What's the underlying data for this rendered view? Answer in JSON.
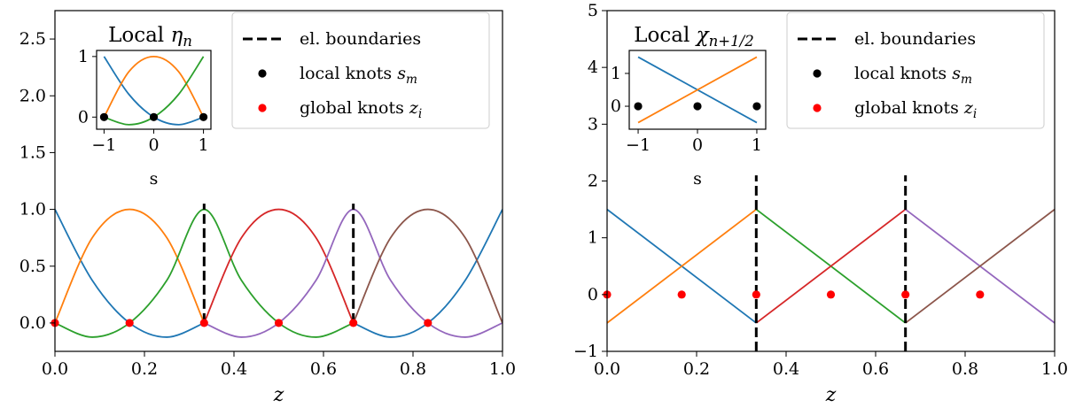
{
  "colors": {
    "series": [
      "#1f77b4",
      "#ff7f0e",
      "#2ca02c",
      "#d62728",
      "#9467bd",
      "#8c564b"
    ],
    "boundary": "#000000",
    "local_knot": "#000000",
    "global_knot": "#ff0000"
  },
  "chart_data": [
    {
      "type": "line",
      "xlabel": "z",
      "ylabel": "",
      "xlim": [
        0,
        1
      ],
      "ylim": [
        -0.25,
        2.75
      ],
      "xticks": [
        0.0,
        0.2,
        0.4,
        0.6,
        0.8,
        1.0
      ],
      "xtick_labels": [
        "0.0",
        "0.2",
        "0.4",
        "0.6",
        "0.8",
        "1.0"
      ],
      "yticks": [
        0.0,
        0.5,
        1.0,
        1.5,
        2.0,
        2.5
      ],
      "ytick_labels": [
        "0.0",
        "0.5",
        "1.0",
        "1.5",
        "2.0",
        "2.5"
      ],
      "element_boundaries": [
        0.3333,
        0.6667
      ],
      "boundary_range": [
        0,
        1.05
      ],
      "global_knots": [
        {
          "x": 0.0,
          "y": 0.0
        },
        {
          "x": 0.1667,
          "y": 0.0
        },
        {
          "x": 0.3333,
          "y": 0.0
        },
        {
          "x": 0.5,
          "y": 0.0
        },
        {
          "x": 0.6667,
          "y": 0.0
        },
        {
          "x": 0.8333,
          "y": 0.0
        }
      ],
      "series": [
        {
          "color_index": 0,
          "x": [
            0,
            0.0833,
            0.1667,
            0.25,
            0.3333,
            0.4167,
            0.5,
            0.5833,
            0.6667,
            0.75,
            0.8333,
            0.9167,
            1.0
          ],
          "y": [
            1.0,
            0.375,
            0.0,
            -0.125,
            0.0,
            null,
            null,
            null,
            0.0,
            -0.125,
            0.0,
            0.375,
            1.0
          ]
        },
        {
          "color_index": 1,
          "x": [
            0,
            0.0833,
            0.1667,
            0.25,
            0.3333
          ],
          "y": [
            0.0,
            0.75,
            1.0,
            0.75,
            0.0
          ]
        },
        {
          "color_index": 2,
          "x": [
            0,
            0.0833,
            0.1667,
            0.25,
            0.3333,
            0.4167,
            0.5,
            0.5833,
            0.6667
          ],
          "y": [
            0.0,
            -0.125,
            0.0,
            0.375,
            1.0,
            0.375,
            0.0,
            -0.125,
            0.0
          ]
        },
        {
          "color_index": 3,
          "x": [
            0.3333,
            0.4167,
            0.5,
            0.5833,
            0.6667
          ],
          "y": [
            0.0,
            0.75,
            1.0,
            0.75,
            0.0
          ]
        },
        {
          "color_index": 4,
          "x": [
            0.3333,
            0.4167,
            0.5,
            0.5833,
            0.6667,
            0.75,
            0.8333,
            0.9167,
            1.0
          ],
          "y": [
            0.0,
            -0.125,
            0.0,
            0.375,
            1.0,
            0.375,
            0.0,
            -0.125,
            0.0
          ]
        },
        {
          "color_index": 5,
          "x": [
            0.6667,
            0.75,
            0.8333,
            0.9167,
            1.0
          ],
          "y": [
            0.0,
            0.75,
            1.0,
            0.75,
            0.0
          ]
        }
      ],
      "legend": {
        "placement": "upper-right",
        "entries": [
          {
            "kind": "dash",
            "label": "el. boundaries"
          },
          {
            "kind": "black-dot",
            "label": "local knots ",
            "math": "s",
            "sub": "m"
          },
          {
            "kind": "red-dot",
            "label": "global knots ",
            "math": "z",
            "sub": "i"
          }
        ]
      },
      "inset": {
        "title": "Local ",
        "title_math": "η",
        "title_sub": "n",
        "xlabel": "s",
        "xlim": [
          -1.15,
          1.15
        ],
        "ylim": [
          -0.2,
          1.1
        ],
        "xticks": [
          -1,
          0,
          1
        ],
        "xtick_labels": [
          "−1",
          "0",
          "1"
        ],
        "yticks": [
          0,
          1
        ],
        "ytick_labels": [
          "0",
          "1"
        ],
        "local_knots": [
          {
            "x": -1,
            "y": 0
          },
          {
            "x": 0,
            "y": 0
          },
          {
            "x": 1,
            "y": 0
          }
        ],
        "series": [
          {
            "color_index": 0,
            "x": [
              -1,
              -0.5,
              0,
              0.5,
              1
            ],
            "y": [
              1.0,
              0.375,
              0.0,
              -0.125,
              0.0
            ]
          },
          {
            "color_index": 1,
            "x": [
              -1,
              -0.5,
              0,
              0.5,
              1
            ],
            "y": [
              0.0,
              0.75,
              1.0,
              0.75,
              0.0
            ]
          },
          {
            "color_index": 2,
            "x": [
              -1,
              -0.5,
              0,
              0.5,
              1
            ],
            "y": [
              0.0,
              -0.125,
              0.0,
              0.375,
              1.0
            ]
          }
        ]
      }
    },
    {
      "type": "line",
      "xlabel": "z",
      "ylabel": "",
      "xlim": [
        0,
        1
      ],
      "ylim": [
        -1,
        5
      ],
      "xticks": [
        0.0,
        0.2,
        0.4,
        0.6,
        0.8,
        1.0
      ],
      "xtick_labels": [
        "0.0",
        "0.2",
        "0.4",
        "0.6",
        "0.8",
        "1.0"
      ],
      "yticks": [
        -1,
        0,
        1,
        2,
        3,
        4,
        5
      ],
      "ytick_labels": [
        "−1",
        "0",
        "1",
        "2",
        "3",
        "4",
        "5"
      ],
      "element_boundaries": [
        0.3333,
        0.6667
      ],
      "boundary_range": [
        -1,
        2.1
      ],
      "global_knots": [
        {
          "x": 0.0,
          "y": 0.0
        },
        {
          "x": 0.1667,
          "y": 0.0
        },
        {
          "x": 0.3333,
          "y": 0.0
        },
        {
          "x": 0.5,
          "y": 0.0
        },
        {
          "x": 0.6667,
          "y": 0.0
        },
        {
          "x": 0.8333,
          "y": 0.0
        }
      ],
      "series": [
        {
          "color_index": 0,
          "x": [
            0,
            0.3333
          ],
          "y": [
            1.5,
            -0.5
          ]
        },
        {
          "color_index": 1,
          "x": [
            0,
            0.3333
          ],
          "y": [
            -0.5,
            1.5
          ]
        },
        {
          "color_index": 2,
          "x": [
            0.3333,
            0.6667
          ],
          "y": [
            1.5,
            -0.5
          ]
        },
        {
          "color_index": 3,
          "x": [
            0.3333,
            0.6667
          ],
          "y": [
            -0.5,
            1.5
          ]
        },
        {
          "color_index": 4,
          "x": [
            0.6667,
            1.0
          ],
          "y": [
            1.5,
            -0.5
          ]
        },
        {
          "color_index": 5,
          "x": [
            0.6667,
            1.0
          ],
          "y": [
            -0.5,
            1.5
          ]
        }
      ],
      "legend": {
        "placement": "upper-right",
        "entries": [
          {
            "kind": "dash",
            "label": "el. boundaries"
          },
          {
            "kind": "black-dot",
            "label": "local knots ",
            "math": "s",
            "sub": "m"
          },
          {
            "kind": "red-dot",
            "label": "global knots ",
            "math": "z",
            "sub": "i"
          }
        ]
      },
      "inset": {
        "title": "Local ",
        "title_math": "χ",
        "title_sub": "n+1/2",
        "xlabel": "s",
        "xlim": [
          -1.15,
          1.15
        ],
        "ylim": [
          -0.7,
          1.7
        ],
        "xticks": [
          -1,
          0,
          1
        ],
        "xtick_labels": [
          "−1",
          "0",
          "1"
        ],
        "yticks": [
          0,
          1
        ],
        "ytick_labels": [
          "0",
          "1"
        ],
        "local_knots": [
          {
            "x": -1,
            "y": 0
          },
          {
            "x": 0,
            "y": 0
          },
          {
            "x": 1,
            "y": 0
          }
        ],
        "series": [
          {
            "color_index": 0,
            "x": [
              -1,
              1
            ],
            "y": [
              1.5,
              -0.5
            ]
          },
          {
            "color_index": 1,
            "x": [
              -1,
              1
            ],
            "y": [
              -0.5,
              1.5
            ]
          }
        ]
      }
    }
  ]
}
